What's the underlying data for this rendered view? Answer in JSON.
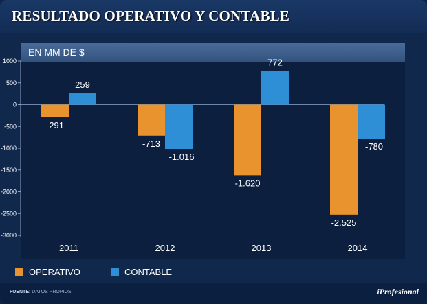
{
  "title": "RESULTADO OPERATIVO Y CONTABLE",
  "unit_label": "EN MM DE $",
  "legend": {
    "operativo": "OPERATIVO",
    "contable": "CONTABLE"
  },
  "footer": {
    "source_label": "FUENTE:",
    "source_value": "DATOS PROPIOS",
    "brand": "iProfesional"
  },
  "colors": {
    "operativo": "#e9932f",
    "contable": "#2f8fd6",
    "background": "#10284c",
    "plot": "#0c1f3e"
  },
  "chart_data": {
    "type": "bar",
    "title": "RESULTADO OPERATIVO Y CONTABLE",
    "subtitle": "EN MM DE $",
    "categories": [
      "2011",
      "2012",
      "2013",
      "2014"
    ],
    "series": [
      {
        "name": "OPERATIVO",
        "values": [
          -291,
          -713,
          -1620,
          -2525
        ],
        "labels": [
          "-291",
          "-713",
          "-1.620",
          "-2.525"
        ]
      },
      {
        "name": "CONTABLE",
        "values": [
          259,
          -1016,
          772,
          -780
        ],
        "labels": [
          "259",
          "-1.016",
          "772",
          "-780"
        ]
      }
    ],
    "yticks": [
      1000,
      500,
      0,
      -500,
      -1000,
      -1500,
      -2000,
      -2500,
      -3000
    ],
    "ylim": [
      -3000,
      1000
    ],
    "grid": false,
    "legend_position": "bottom-left"
  }
}
